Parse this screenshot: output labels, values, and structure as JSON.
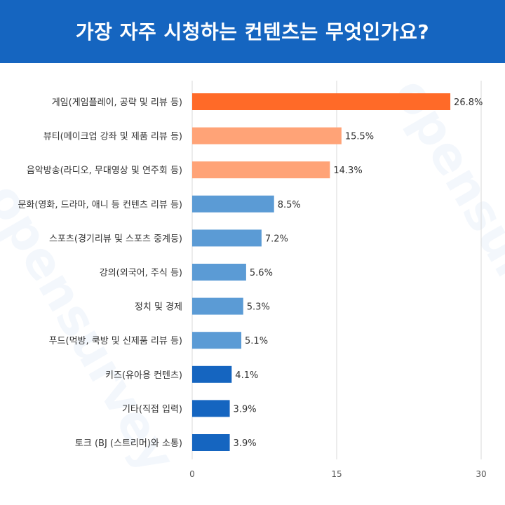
{
  "header": {
    "title": "가장 자주 시청하는 컨텐츠는 무엇인가요?"
  },
  "watermark": {
    "text": "opensurvey"
  },
  "colors": {
    "header": "#1565c0",
    "top": "#ff6a28",
    "second": "#ffa377",
    "middle": "#5b9bd5",
    "bottom": "#1565c0",
    "grid": "#d9d9d9"
  },
  "chart_data": {
    "type": "bar",
    "orientation": "horizontal",
    "title": "가장 자주 시청하는 컨텐츠는 무엇인가요?",
    "categories": [
      "게임(게임플레이, 공략 및 리뷰 등)",
      "뷰티(메이크업 강좌 및 제품 리뷰 등)",
      "음악방송(라디오, 무대영상 및 연주회 등)",
      "문화(영화, 드라마, 애니 등 컨텐츠 리뷰 등)",
      "스포츠(경기리뷰 및 스포츠 중계등)",
      "강의(외국어, 주식 등)",
      "정치 및 경제",
      "푸드(먹방, 쿡방 및 신제품 리뷰 등)",
      "키즈(유아용 컨텐츠)",
      "기타(직접 입력)",
      "토크 (BJ (스트리머)와 소통)"
    ],
    "values": [
      26.8,
      15.5,
      14.3,
      8.5,
      7.2,
      5.6,
      5.3,
      5.1,
      4.1,
      3.9,
      3.9
    ],
    "value_labels": [
      "26.8%",
      "15.5%",
      "14.3%",
      "8.5%",
      "7.2%",
      "5.6%",
      "5.3%",
      "5.1%",
      "4.1%",
      "3.9%",
      "3.9%"
    ],
    "bar_color_groups": [
      "top",
      "second",
      "second",
      "middle",
      "middle",
      "middle",
      "middle",
      "middle",
      "bottom",
      "bottom",
      "bottom"
    ],
    "xlim": [
      0,
      30
    ],
    "xticks": [
      0,
      15,
      30
    ],
    "grid": true
  }
}
